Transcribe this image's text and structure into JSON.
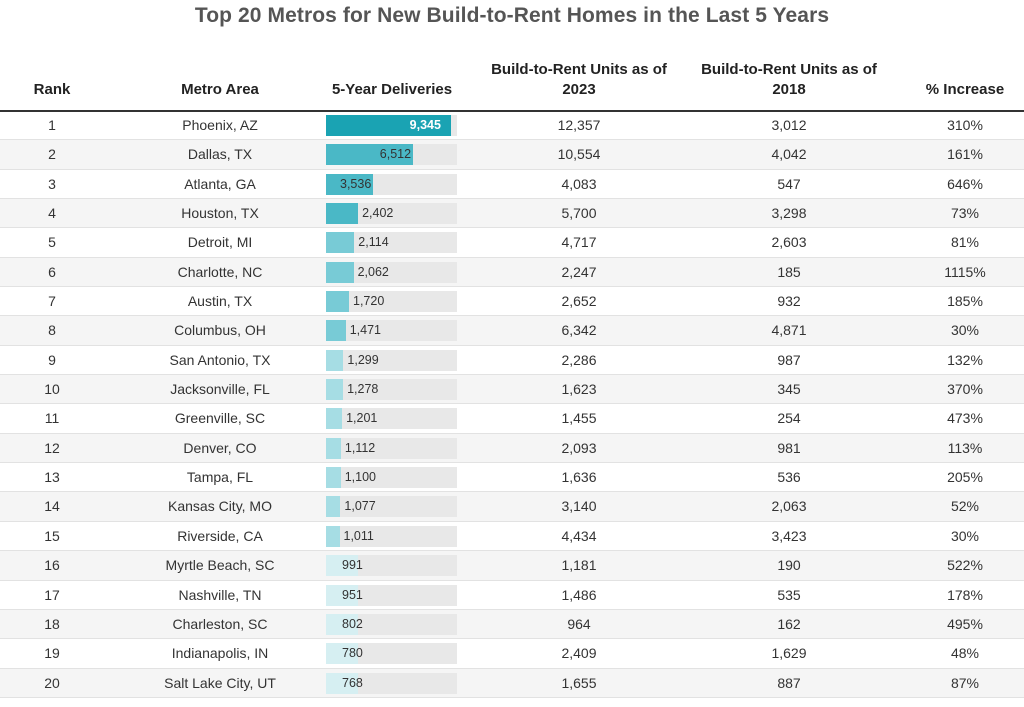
{
  "chart_data": {
    "type": "table",
    "title": "Top 20 Metros for New Build-to-Rent Homes in the Last 5 Years",
    "columns": [
      "Rank",
      "Metro Area",
      "5-Year Deliveries",
      "Build-to-Rent Units as of 2023",
      "Build-to-Rent Units as of 2018",
      "% Increase"
    ],
    "bar_max": 9800,
    "colors": [
      "#1aa3b3",
      "#4ab8c6",
      "#78cbd6",
      "#a6dde4",
      "#d6eff2"
    ],
    "rows": [
      {
        "rank": "1",
        "metro": "Phoenix, AZ",
        "deliveries": 9345,
        "deliveries_label": "9,345",
        "units_2023": "12,357",
        "units_2018": "3,012",
        "increase": "310%"
      },
      {
        "rank": "2",
        "metro": "Dallas, TX",
        "deliveries": 6512,
        "deliveries_label": "6,512",
        "units_2023": "10,554",
        "units_2018": "4,042",
        "increase": "161%"
      },
      {
        "rank": "3",
        "metro": "Atlanta, GA",
        "deliveries": 3536,
        "deliveries_label": "3,536",
        "units_2023": "4,083",
        "units_2018": "547",
        "increase": "646%"
      },
      {
        "rank": "4",
        "metro": "Houston, TX",
        "deliveries": 2402,
        "deliveries_label": "2,402",
        "units_2023": "5,700",
        "units_2018": "3,298",
        "increase": "73%"
      },
      {
        "rank": "5",
        "metro": "Detroit, MI",
        "deliveries": 2114,
        "deliveries_label": "2,114",
        "units_2023": "4,717",
        "units_2018": "2,603",
        "increase": "81%"
      },
      {
        "rank": "6",
        "metro": "Charlotte, NC",
        "deliveries": 2062,
        "deliveries_label": "2,062",
        "units_2023": "2,247",
        "units_2018": "185",
        "increase": "1115%"
      },
      {
        "rank": "7",
        "metro": "Austin, TX",
        "deliveries": 1720,
        "deliveries_label": "1,720",
        "units_2023": "2,652",
        "units_2018": "932",
        "increase": "185%"
      },
      {
        "rank": "8",
        "metro": "Columbus, OH",
        "deliveries": 1471,
        "deliveries_label": "1,471",
        "units_2023": "6,342",
        "units_2018": "4,871",
        "increase": "30%"
      },
      {
        "rank": "9",
        "metro": "San Antonio, TX",
        "deliveries": 1299,
        "deliveries_label": "1,299",
        "units_2023": "2,286",
        "units_2018": "987",
        "increase": "132%"
      },
      {
        "rank": "10",
        "metro": "Jacksonville, FL",
        "deliveries": 1278,
        "deliveries_label": "1,278",
        "units_2023": "1,623",
        "units_2018": "345",
        "increase": "370%"
      },
      {
        "rank": "11",
        "metro": "Greenville, SC",
        "deliveries": 1201,
        "deliveries_label": "1,201",
        "units_2023": "1,455",
        "units_2018": "254",
        "increase": "473%"
      },
      {
        "rank": "12",
        "metro": "Denver, CO",
        "deliveries": 1112,
        "deliveries_label": "1,112",
        "units_2023": "2,093",
        "units_2018": "981",
        "increase": "113%"
      },
      {
        "rank": "13",
        "metro": "Tampa, FL",
        "deliveries": 1100,
        "deliveries_label": "1,100",
        "units_2023": "1,636",
        "units_2018": "536",
        "increase": "205%"
      },
      {
        "rank": "14",
        "metro": "Kansas City, MO",
        "deliveries": 1077,
        "deliveries_label": "1,077",
        "units_2023": "3,140",
        "units_2018": "2,063",
        "increase": "52%"
      },
      {
        "rank": "15",
        "metro": "Riverside, CA",
        "deliveries": 1011,
        "deliveries_label": "1,011",
        "units_2023": "4,434",
        "units_2018": "3,423",
        "increase": "30%"
      },
      {
        "rank": "16",
        "metro": "Myrtle Beach, SC",
        "deliveries": 991,
        "deliveries_label": "991",
        "units_2023": "1,181",
        "units_2018": "190",
        "increase": "522%"
      },
      {
        "rank": "17",
        "metro": "Nashville, TN",
        "deliveries": 951,
        "deliveries_label": "951",
        "units_2023": "1,486",
        "units_2018": "535",
        "increase": "178%"
      },
      {
        "rank": "18",
        "metro": "Charleston, SC",
        "deliveries": 802,
        "deliveries_label": "802",
        "units_2023": "964",
        "units_2018": "162",
        "increase": "495%"
      },
      {
        "rank": "19",
        "metro": "Indianapolis, IN",
        "deliveries": 780,
        "deliveries_label": "780",
        "units_2023": "2,409",
        "units_2018": "1,629",
        "increase": "48%"
      },
      {
        "rank": "20",
        "metro": "Salt Lake City, UT",
        "deliveries": 768,
        "deliveries_label": "768",
        "units_2023": "1,655",
        "units_2018": "887",
        "increase": "87%"
      }
    ]
  }
}
